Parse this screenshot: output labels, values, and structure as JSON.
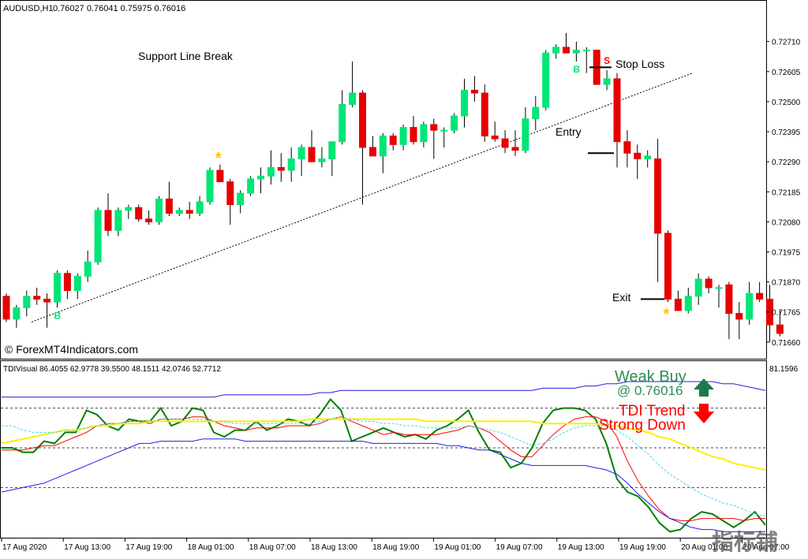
{
  "header": {
    "symbol": "AUDUSD,H1",
    "ohlc": "0.76027 0.76041 0.75975 0.76016"
  },
  "indicator_header": "TDIVisual 86.4055 62.9778 39.5500 48.1511 42.0746 52.7712",
  "watermark": "© ForexMT4Indicators.com",
  "corner_logo": "指标铺",
  "annotations": {
    "support_break": "Support Line Break",
    "stop_loss": "Stop Loss",
    "entry": "Entry",
    "exit": "Exit",
    "weak_buy_1": "Weak Buy",
    "weak_buy_2": "@ 0.76016",
    "tdi_trend_1": "TDI Trend",
    "tdi_trend_2": "Strong Down"
  },
  "markers": {
    "buy_letter": "B",
    "sell_letter": "S",
    "star": "*"
  },
  "colors": {
    "bull": "#00e676",
    "bear": "#e80000",
    "green_line": "#008000",
    "red_line": "#ff0000",
    "blue_line": "#2020e0",
    "yellow_line": "#ffee00",
    "cyan_line": "#40d8f0",
    "weak_buy_text": "#2e8b57",
    "tdi_text": "#ff0000",
    "star": "#ffc000",
    "buy_marker": "#00e676",
    "sell_marker": "#ff0000"
  },
  "chart_data": [
    {
      "type": "candlestick",
      "symbol": "AUDUSD",
      "timeframe": "H1",
      "price_axis_ticks": [
        "0.72710",
        "0.72605",
        "0.72500",
        "0.72395",
        "0.72290",
        "0.72185",
        "0.72080",
        "0.71975",
        "0.71870",
        "0.71765",
        "0.71660"
      ],
      "price_ylim": [
        0.7161,
        0.728
      ],
      "time_axis_labels": [
        "17 Aug 2020",
        "17 Aug 13:00",
        "17 Aug 19:00",
        "18 Aug 01:00",
        "18 Aug 07:00",
        "18 Aug 13:00",
        "18 Aug 19:00",
        "19 Aug 01:00",
        "19 Aug 07:00",
        "19 Aug 13:00",
        "19 Aug 19:00",
        "20 Aug 01:00",
        "20 Aug 07:00"
      ],
      "candles": [
        [
          0.7182,
          0.7183,
          0.7173,
          0.7174
        ],
        [
          0.7174,
          0.7179,
          0.7171,
          0.7178
        ],
        [
          0.7178,
          0.7184,
          0.7175,
          0.7182
        ],
        [
          0.7182,
          0.7185,
          0.7179,
          0.7181
        ],
        [
          0.7181,
          0.7183,
          0.7171,
          0.718
        ],
        [
          0.718,
          0.7191,
          0.7178,
          0.719
        ],
        [
          0.719,
          0.7191,
          0.7181,
          0.7184
        ],
        [
          0.7184,
          0.719,
          0.7181,
          0.7189
        ],
        [
          0.7189,
          0.7198,
          0.7187,
          0.7194
        ],
        [
          0.7194,
          0.7213,
          0.7193,
          0.7212
        ],
        [
          0.7212,
          0.7218,
          0.7203,
          0.7205
        ],
        [
          0.7205,
          0.7213,
          0.7203,
          0.7212
        ],
        [
          0.7212,
          0.7214,
          0.7209,
          0.7213
        ],
        [
          0.7213,
          0.7214,
          0.7208,
          0.7209
        ],
        [
          0.7209,
          0.7212,
          0.7207,
          0.7208
        ],
        [
          0.7208,
          0.7217,
          0.7207,
          0.7216
        ],
        [
          0.7216,
          0.7222,
          0.721,
          0.7211
        ],
        [
          0.7211,
          0.7213,
          0.721,
          0.7212
        ],
        [
          0.7212,
          0.7215,
          0.7209,
          0.7211
        ],
        [
          0.7211,
          0.7217,
          0.721,
          0.7215
        ],
        [
          0.7215,
          0.7227,
          0.7214,
          0.7226
        ],
        [
          0.7226,
          0.7228,
          0.7222,
          0.7222
        ],
        [
          0.7222,
          0.7223,
          0.7207,
          0.7214
        ],
        [
          0.7214,
          0.7219,
          0.7211,
          0.7218
        ],
        [
          0.7218,
          0.7224,
          0.7217,
          0.7223
        ],
        [
          0.7223,
          0.7227,
          0.7218,
          0.7224
        ],
        [
          0.7224,
          0.7233,
          0.7221,
          0.7227
        ],
        [
          0.7227,
          0.7232,
          0.7222,
          0.7226
        ],
        [
          0.7226,
          0.7234,
          0.7222,
          0.723
        ],
        [
          0.723,
          0.7235,
          0.7224,
          0.7234
        ],
        [
          0.7234,
          0.724,
          0.7229,
          0.7229
        ],
        [
          0.7229,
          0.7234,
          0.7227,
          0.723
        ],
        [
          0.723,
          0.7236,
          0.7224,
          0.7236
        ],
        [
          0.7236,
          0.7254,
          0.7235,
          0.7249
        ],
        [
          0.7249,
          0.7264,
          0.7248,
          0.7253
        ],
        [
          0.7253,
          0.7254,
          0.7214,
          0.7234
        ],
        [
          0.7234,
          0.7238,
          0.7231,
          0.7231
        ],
        [
          0.7231,
          0.7239,
          0.7225,
          0.7238
        ],
        [
          0.7238,
          0.7239,
          0.7233,
          0.7235
        ],
        [
          0.7235,
          0.7242,
          0.7233,
          0.7241
        ],
        [
          0.7241,
          0.7245,
          0.7235,
          0.7236
        ],
        [
          0.7236,
          0.7243,
          0.7234,
          0.7242
        ],
        [
          0.7242,
          0.7244,
          0.723,
          0.724
        ],
        [
          0.724,
          0.7241,
          0.7234,
          0.724
        ],
        [
          0.724,
          0.7246,
          0.7239,
          0.7245
        ],
        [
          0.7245,
          0.7258,
          0.7241,
          0.7254
        ],
        [
          0.7254,
          0.7259,
          0.725,
          0.7253
        ],
        [
          0.7253,
          0.7256,
          0.7236,
          0.7238
        ],
        [
          0.7238,
          0.7243,
          0.7236,
          0.7237
        ],
        [
          0.7237,
          0.724,
          0.7232,
          0.7234
        ],
        [
          0.7234,
          0.724,
          0.7231,
          0.7233
        ],
        [
          0.7233,
          0.7248,
          0.7232,
          0.7244
        ],
        [
          0.7244,
          0.7252,
          0.724,
          0.7248
        ],
        [
          0.7248,
          0.7268,
          0.7247,
          0.7267
        ],
        [
          0.7267,
          0.727,
          0.7265,
          0.7269
        ],
        [
          0.7269,
          0.7274,
          0.7267,
          0.7267
        ],
        [
          0.7267,
          0.7271,
          0.7264,
          0.7268
        ],
        [
          0.7268,
          0.7269,
          0.726,
          0.7268
        ],
        [
          0.7268,
          0.7268,
          0.7256,
          0.7256
        ],
        [
          0.7256,
          0.7261,
          0.7254,
          0.7258
        ],
        [
          0.7258,
          0.726,
          0.7227,
          0.7236
        ],
        [
          0.7236,
          0.724,
          0.7227,
          0.7232
        ],
        [
          0.7232,
          0.7235,
          0.7223,
          0.723
        ],
        [
          0.723,
          0.7233,
          0.7227,
          0.7231
        ],
        [
          0.723,
          0.7237,
          0.7187,
          0.7204
        ],
        [
          0.7204,
          0.7205,
          0.718,
          0.7181
        ],
        [
          0.7181,
          0.7184,
          0.7177,
          0.7177
        ],
        [
          0.7177,
          0.7185,
          0.7176,
          0.7182
        ],
        [
          0.7182,
          0.719,
          0.7179,
          0.7188
        ],
        [
          0.7188,
          0.7189,
          0.7183,
          0.7185
        ],
        [
          0.7185,
          0.7186,
          0.7178,
          0.7185
        ],
        [
          0.7186,
          0.7187,
          0.7167,
          0.7176
        ],
        [
          0.7176,
          0.718,
          0.7167,
          0.7174
        ],
        [
          0.7174,
          0.7187,
          0.7172,
          0.7183
        ],
        [
          0.7183,
          0.7187,
          0.718,
          0.7181
        ],
        [
          0.7181,
          0.7186,
          0.7166,
          0.7172
        ],
        [
          0.7172,
          0.7177,
          0.7168,
          0.7169
        ]
      ],
      "trendline": [
        [
          0.7173,
          0.726
        ]
      ],
      "levels": {
        "stop_loss": 0.7262,
        "entry": 0.7232,
        "exit": 0.7181
      },
      "signals": [
        {
          "type": "buy",
          "candle": 5
        },
        {
          "type": "star",
          "candle": 21
        },
        {
          "type": "buy",
          "candle": 56
        },
        {
          "type": "sell",
          "candle": 59
        },
        {
          "type": "star",
          "candle": 65
        }
      ]
    },
    {
      "type": "line",
      "name": "TDIVisual",
      "value_axis_tick": "81.1596",
      "levels": [
        68,
        50,
        32
      ],
      "ylim": [
        10,
        85
      ],
      "series": [
        {
          "color": "green",
          "values": [
            50,
            50,
            48,
            48,
            53,
            52,
            57,
            57,
            67,
            65,
            60,
            58,
            63,
            62,
            62,
            68,
            60,
            62,
            68,
            67,
            57,
            55,
            58,
            58,
            62,
            58,
            60,
            63,
            62,
            60,
            65,
            72,
            67,
            53,
            55,
            57,
            59,
            57,
            55,
            56,
            54,
            58,
            60,
            63,
            67,
            57,
            49,
            48,
            41,
            43,
            50,
            61,
            67,
            68,
            68,
            67,
            63,
            52,
            36,
            30,
            28,
            23,
            16,
            12,
            13,
            18,
            21,
            20,
            17,
            14,
            17,
            21,
            15
          ]
        },
        {
          "color": "red",
          "values": [
            49,
            49,
            49,
            50,
            51,
            51,
            53,
            55,
            57,
            60,
            61,
            61,
            62,
            62,
            61,
            63,
            63,
            63,
            64,
            64,
            62,
            60,
            59,
            58,
            59,
            59,
            59,
            60,
            60,
            60,
            61,
            63,
            64,
            62,
            60,
            58,
            56,
            57,
            56,
            56,
            56,
            56,
            57,
            58,
            60,
            59,
            57,
            53,
            49,
            46,
            46,
            51,
            56,
            60,
            63,
            64,
            64,
            62,
            55,
            44,
            35,
            28,
            22,
            18,
            17,
            17,
            18,
            18,
            18,
            18,
            17,
            18,
            18
          ]
        },
        {
          "color": "blue",
          "values": [
            30,
            31,
            32,
            33,
            34,
            36,
            38,
            40,
            42,
            44,
            46,
            48,
            50,
            52,
            52,
            53,
            53,
            53,
            53,
            54,
            54,
            54,
            54,
            53,
            53,
            53,
            53,
            53,
            53,
            53,
            53,
            53,
            53,
            53,
            53,
            52,
            52,
            52,
            52,
            52,
            52,
            52,
            51,
            51,
            50,
            49,
            49,
            47,
            45,
            43,
            42,
            42,
            42,
            42,
            42,
            42,
            41,
            40,
            38,
            34,
            29,
            25,
            21,
            18,
            16,
            14,
            13,
            13,
            12,
            12,
            12,
            12,
            12
          ]
        },
        {
          "color": "blue",
          "values": [
            73,
            73,
            73,
            73,
            73,
            73,
            73,
            73,
            73,
            73,
            73,
            73,
            73,
            73,
            73,
            73,
            73,
            73,
            73,
            73,
            73,
            74,
            74,
            74,
            74,
            74,
            74,
            74,
            74,
            74,
            75,
            75,
            76,
            76,
            76,
            76,
            76,
            76,
            76,
            76,
            76,
            76,
            76,
            76,
            76,
            76,
            76,
            76,
            76,
            76,
            76,
            77,
            77,
            77,
            77,
            78,
            78,
            79,
            79,
            80,
            80,
            80,
            80,
            80,
            80,
            80,
            80,
            80,
            79,
            79,
            78,
            77,
            76
          ]
        },
        {
          "color": "yellow",
          "values": [
            52,
            53,
            54,
            55,
            56,
            57,
            58,
            58,
            59,
            60,
            60,
            61,
            61,
            61,
            62,
            62,
            62,
            62,
            62,
            62,
            62,
            62,
            62,
            62,
            62,
            62,
            62,
            62,
            62,
            63,
            63,
            63,
            63,
            63,
            63,
            63,
            63,
            63,
            63,
            63,
            62,
            62,
            62,
            62,
            62,
            62,
            62,
            62,
            62,
            62,
            62,
            61,
            61,
            61,
            61,
            61,
            61,
            60,
            60,
            59,
            58,
            57,
            55,
            54,
            52,
            50,
            48,
            46,
            45,
            43,
            42,
            41,
            40
          ]
        },
        {
          "color": "cyan",
          "values": [
            60,
            60,
            58,
            57,
            57,
            57,
            58,
            58,
            59,
            60,
            61,
            61,
            62,
            62,
            62,
            63,
            63,
            63,
            63,
            63,
            62,
            62,
            61,
            61,
            61,
            61,
            61,
            61,
            61,
            61,
            62,
            63,
            64,
            63,
            62,
            62,
            61,
            61,
            60,
            60,
            59,
            59,
            59,
            59,
            60,
            59,
            58,
            57,
            55,
            53,
            51,
            52,
            54,
            57,
            59,
            60,
            60,
            60,
            58,
            55,
            51,
            47,
            42,
            38,
            35,
            32,
            29,
            27,
            25,
            24,
            22,
            20,
            19
          ]
        }
      ]
    }
  ]
}
